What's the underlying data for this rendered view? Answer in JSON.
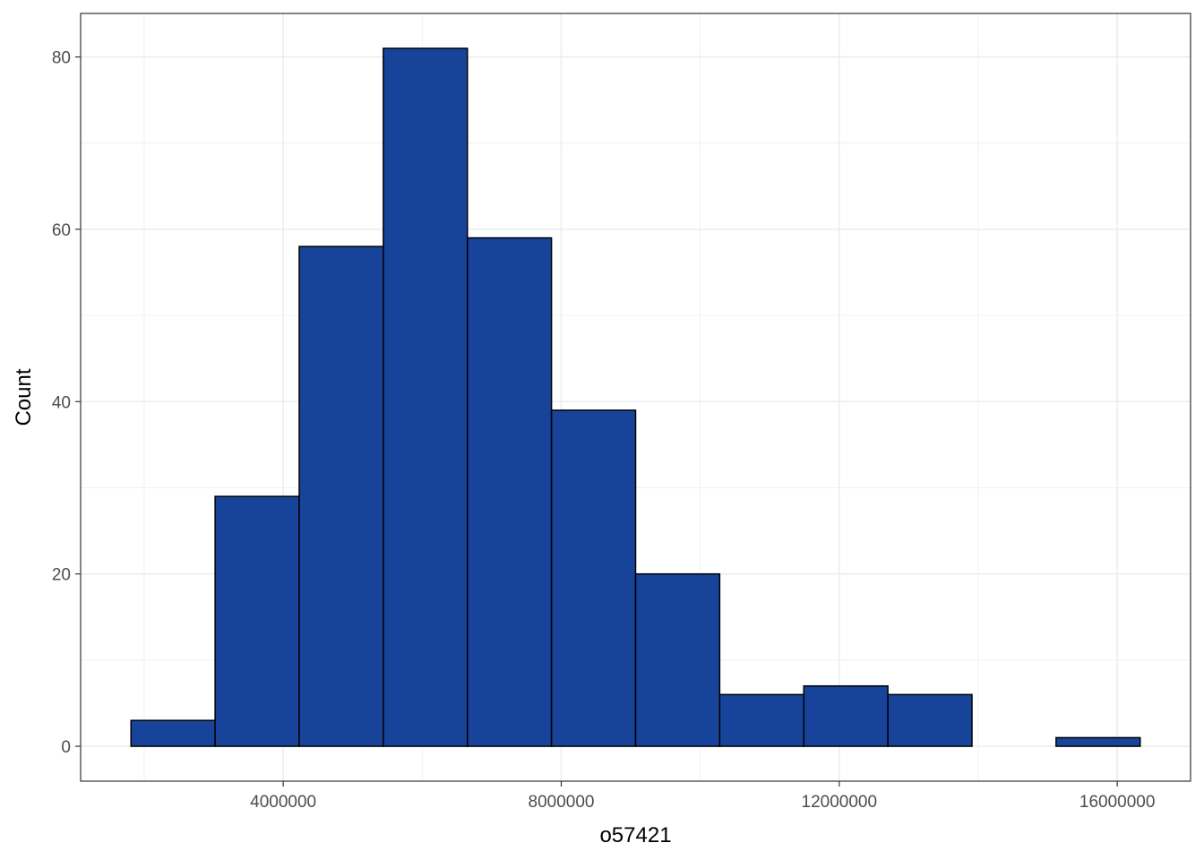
{
  "chart_data": {
    "type": "histogram",
    "xlabel": "o57421",
    "ylabel": "Count",
    "bin_width": 1210000,
    "bins": [
      {
        "start": 1810000,
        "end": 3020000,
        "count": 3
      },
      {
        "start": 3020000,
        "end": 4230000,
        "count": 29
      },
      {
        "start": 4230000,
        "end": 5440000,
        "count": 58
      },
      {
        "start": 5440000,
        "end": 6650000,
        "count": 81
      },
      {
        "start": 6650000,
        "end": 7860000,
        "count": 59
      },
      {
        "start": 7860000,
        "end": 9070000,
        "count": 39
      },
      {
        "start": 9070000,
        "end": 10280000,
        "count": 20
      },
      {
        "start": 10280000,
        "end": 11490000,
        "count": 6
      },
      {
        "start": 11490000,
        "end": 12700000,
        "count": 7
      },
      {
        "start": 12700000,
        "end": 13910000,
        "count": 6
      },
      {
        "start": 13910000,
        "end": 15120000,
        "count": 0
      },
      {
        "start": 15120000,
        "end": 16330000,
        "count": 1
      }
    ],
    "xlim": [
      1085000,
      17055000
    ],
    "ylim": [
      -4.05,
      85.05
    ],
    "x_ticks": [
      4000000,
      8000000,
      12000000,
      16000000
    ],
    "x_tick_labels": [
      "4000000",
      "8000000",
      "12000000",
      "16000000"
    ],
    "x_minor_ticks": [
      2000000,
      6000000,
      10000000,
      14000000
    ],
    "y_ticks": [
      0,
      20,
      40,
      60,
      80
    ],
    "y_tick_labels": [
      "0",
      "20",
      "40",
      "60",
      "80"
    ],
    "y_minor_ticks": [
      10,
      30,
      50,
      70
    ],
    "grid": true,
    "legend": "none",
    "bar_fill": "#17449a",
    "bar_stroke": "#000000",
    "grid_color": "#ebebeb",
    "panel_border": "#333333"
  }
}
